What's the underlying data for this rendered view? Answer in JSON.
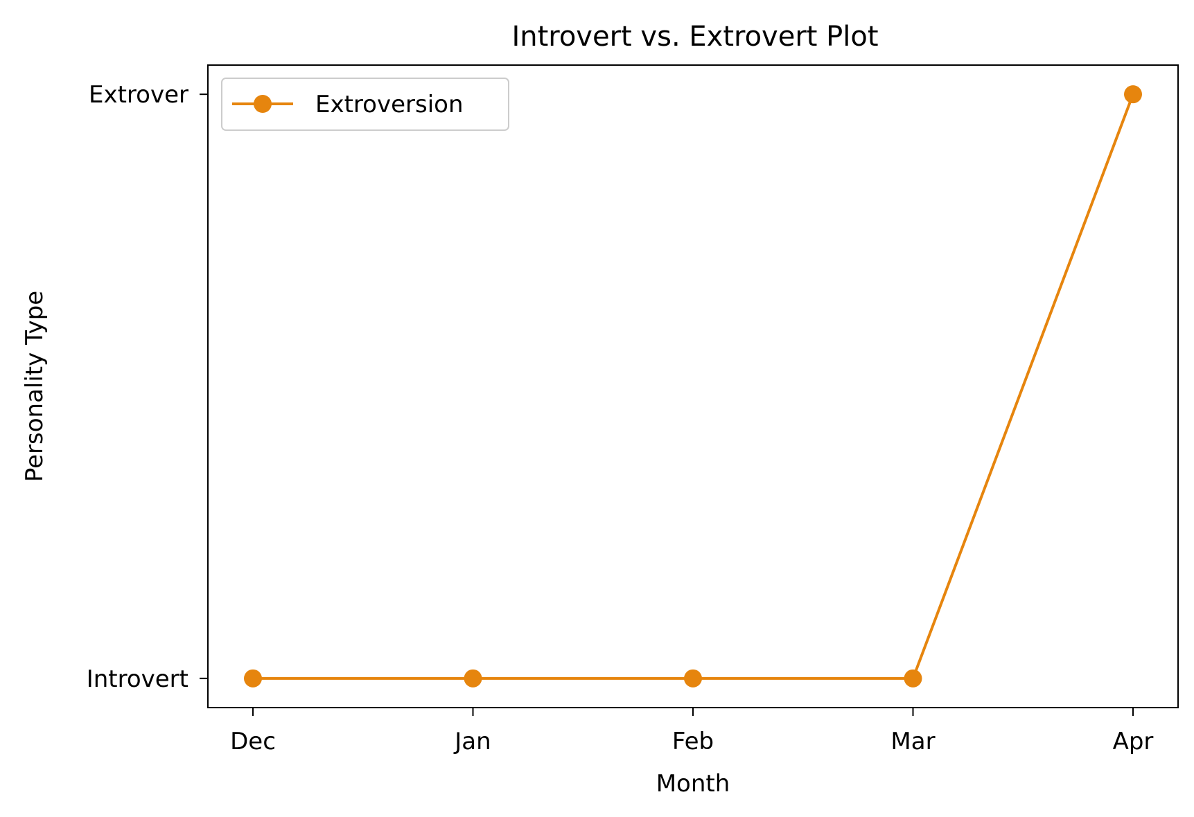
{
  "chart_data": {
    "type": "line",
    "title": "Introvert vs. Extrovert Plot",
    "xlabel": "Month",
    "ylabel": "Personality Type",
    "categories": [
      "Dec",
      "Jan",
      "Feb",
      "Mar",
      "Apr"
    ],
    "y_ticks": [
      {
        "value": 0,
        "label": "Introvert"
      },
      {
        "value": 1,
        "label": "Extrover"
      }
    ],
    "ylim": [
      -0.05,
      1.05
    ],
    "series": [
      {
        "name": "Extroversion",
        "values": [
          0,
          0,
          0,
          0,
          1
        ],
        "color": "#E6850E",
        "marker": "circle"
      }
    ],
    "legend_position": "top-left",
    "grid": false
  }
}
